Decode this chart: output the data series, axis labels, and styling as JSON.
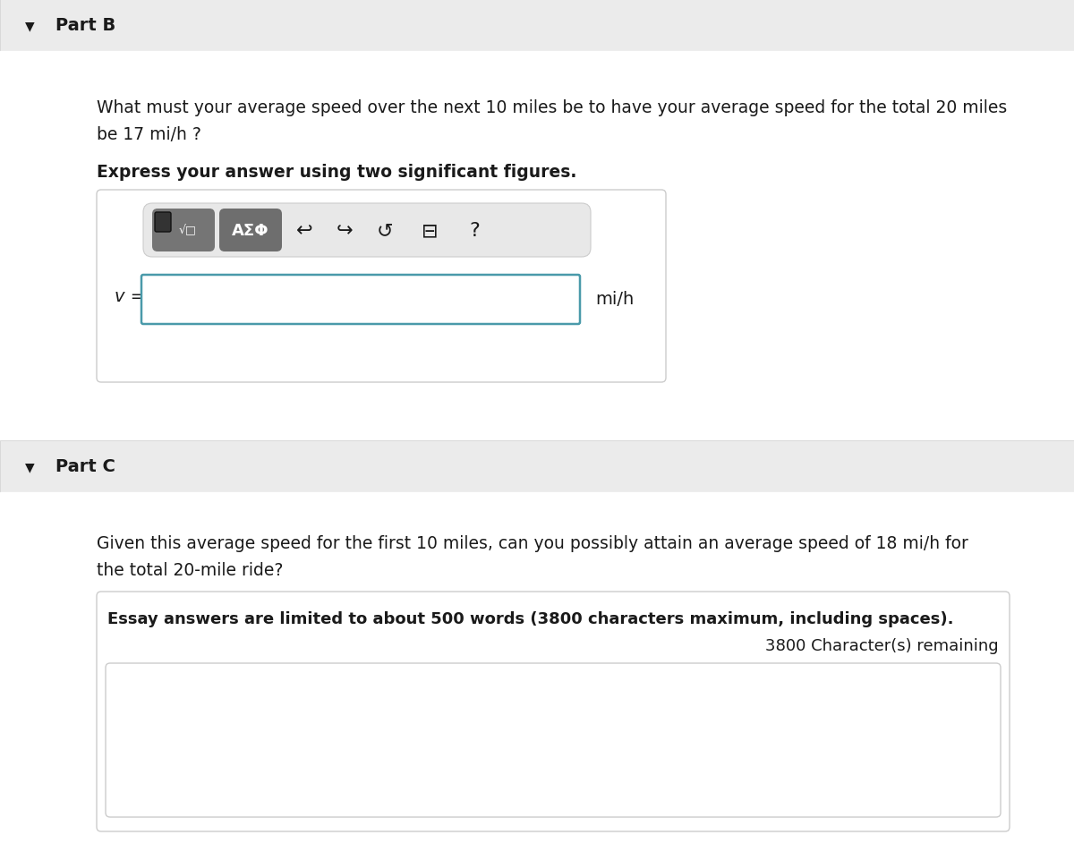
{
  "white": "#ffffff",
  "light_gray_bg": "#f0f0f0",
  "header_bg": "#ebebeb",
  "border_color": "#cccccc",
  "blue_border": "#4a9aaa",
  "toolbar_pill_bg": "#e8e8e8",
  "btn_dark": "#757575",
  "btn_dark2": "#6e6e6e",
  "text_dark": "#1a1a1a",
  "text_mid": "#555555",
  "part_b_label": "Part B",
  "part_b_q1": "What must your average speed over the next 10 miles be to have your average speed for the total 20 miles",
  "part_b_q2": "be 17 mi/h ?",
  "part_b_instr": "Express your answer using two significant figures.",
  "v_label": "v =",
  "unit_label": "mi/h",
  "part_c_label": "Part C",
  "part_c_q1": "Given this average speed for the first 10 miles, can you possibly attain an average speed of 18 mi/h for",
  "part_c_q2": "the total 20-mile ride?",
  "essay_notice": "Essay answers are limited to about 500 words (3800 characters maximum, including spaces).",
  "chars_remaining": "3800 Character(s) remaining"
}
